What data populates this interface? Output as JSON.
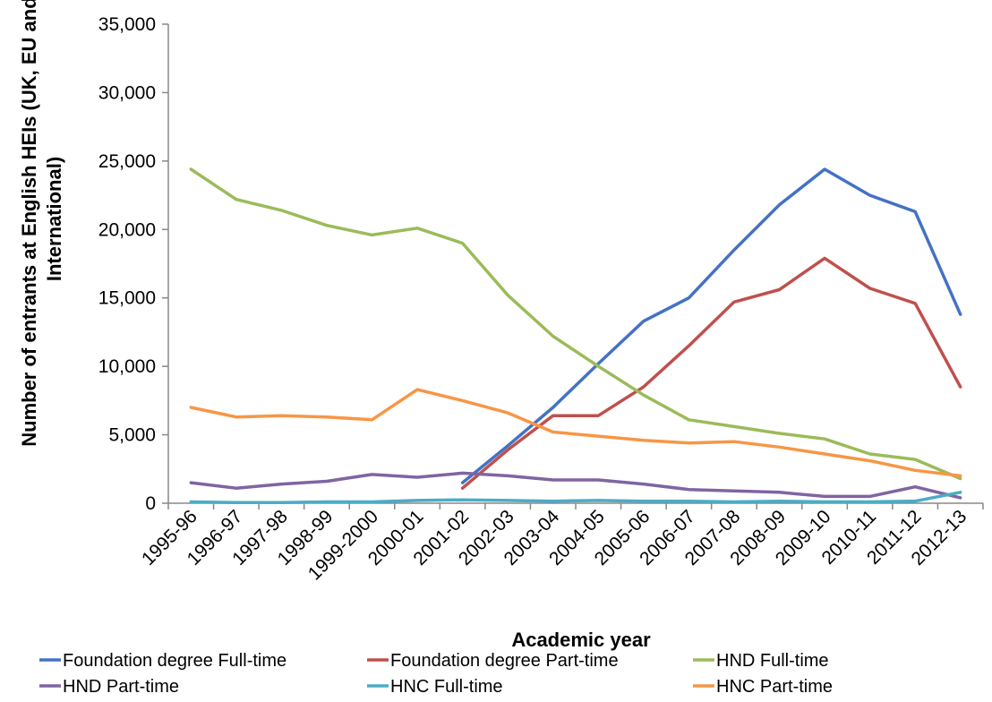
{
  "chart_data": {
    "type": "line",
    "xlabel": "Academic year",
    "ylabel": "Number of entrants at English HEIs (UK, EU and International)",
    "ylabel_lines": [
      "Number of entrants at English HEIs (UK, EU and",
      "International)"
    ],
    "ylim": [
      0,
      35000
    ],
    "yticks": [
      0,
      5000,
      10000,
      15000,
      20000,
      25000,
      30000,
      35000
    ],
    "ytick_labels": [
      "0",
      "5,000",
      "10,000",
      "15,000",
      "20,000",
      "25,000",
      "30,000",
      "35,000"
    ],
    "grid": false,
    "legend_position": "bottom",
    "categories": [
      "1995-96",
      "1996-97",
      "1997-98",
      "1998-99",
      "1999-2000",
      "2000-01",
      "2001-02",
      "2002-03",
      "2003-04",
      "2004-05",
      "2005-06",
      "2006-07",
      "2007-08",
      "2008-09",
      "2009-10",
      "2010-11",
      "2011-12",
      "2012-13"
    ],
    "series": [
      {
        "name": "Foundation degree Full-time",
        "color": "#4472C4",
        "values": [
          null,
          null,
          null,
          null,
          null,
          null,
          1500,
          4200,
          7000,
          10200,
          13300,
          15000,
          18500,
          21800,
          24400,
          22500,
          21300,
          13800
        ]
      },
      {
        "name": "Foundation degree Part-time",
        "color": "#C0504D",
        "values": [
          null,
          null,
          null,
          null,
          null,
          null,
          1100,
          3900,
          6400,
          6400,
          8500,
          11500,
          14700,
          15600,
          17900,
          15700,
          14600,
          8500
        ]
      },
      {
        "name": "HND Full-time",
        "color": "#9BBB59",
        "values": [
          24400,
          22200,
          21400,
          20300,
          19600,
          20100,
          19000,
          15200,
          12200,
          10000,
          7900,
          6100,
          5600,
          5100,
          4700,
          3600,
          3200,
          1800
        ]
      },
      {
        "name": "HND Part-time",
        "color": "#8064A2",
        "values": [
          1500,
          1100,
          1400,
          1600,
          2100,
          1900,
          2200,
          2000,
          1700,
          1700,
          1400,
          1000,
          900,
          800,
          500,
          500,
          1200,
          400
        ]
      },
      {
        "name": "HNC Full-time",
        "color": "#4BACC6",
        "values": [
          100,
          50,
          50,
          100,
          100,
          200,
          250,
          200,
          150,
          200,
          150,
          150,
          100,
          150,
          100,
          100,
          150,
          800
        ]
      },
      {
        "name": "HNC Part-time",
        "color": "#F79646",
        "values": [
          7000,
          6300,
          6400,
          6300,
          6100,
          8300,
          7500,
          6600,
          5200,
          4900,
          4600,
          4400,
          4500,
          4100,
          3600,
          3100,
          2400,
          2000
        ]
      }
    ]
  }
}
